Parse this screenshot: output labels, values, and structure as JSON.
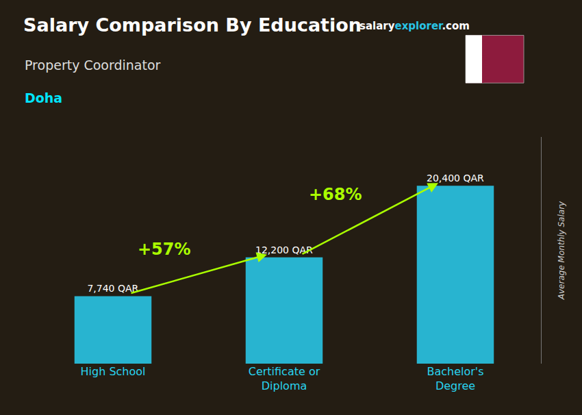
{
  "chart_data": {
    "type": "bar",
    "title": "Salary Comparison By Education",
    "subtitle": "Property Coordinator",
    "location": "Doha",
    "watermark": [
      "salary",
      "explorer",
      ".com"
    ],
    "categories": [
      "High School",
      "Certificate or\nDiploma",
      "Bachelor's\nDegree"
    ],
    "values": [
      7740,
      12200,
      20400
    ],
    "value_labels": [
      "7,740 QAR",
      "12,200 QAR",
      "20,400 QAR"
    ],
    "data_labels": true,
    "color": "#29c5e6",
    "annotations": [
      {
        "text": "+57%",
        "color": "#aaff00"
      },
      {
        "text": "+68%",
        "color": "#aaff00"
      }
    ],
    "ylabel": "Average Monthly Salary",
    "ylim": [
      0,
      26000
    ],
    "yticks": [],
    "tick_labels": "x",
    "grid": false
  }
}
